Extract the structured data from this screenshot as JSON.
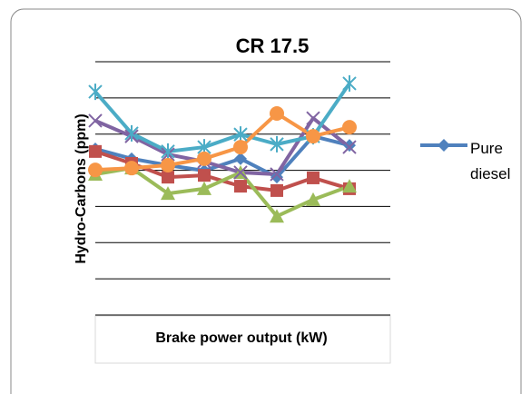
{
  "chart_data": {
    "type": "line",
    "title": "CR 17.5",
    "x_label": "Brake power output (kW)",
    "y_label": "Hydro-Carbons (ppm)",
    "categories": [
      null,
      null,
      null,
      null,
      null,
      null,
      null,
      null
    ],
    "ylim": [
      0,
      7
    ],
    "yticks": [
      0,
      1,
      2,
      3,
      4,
      5,
      6,
      7
    ],
    "grid": true,
    "legend": "right",
    "series": [
      {
        "name": "Pure diesel",
        "color": "#4f81bd",
        "marker": "diamond",
        "values": [
          4.59,
          4.32,
          4.14,
          3.99,
          4.32,
          3.81,
          4.94,
          4.69
        ]
      },
      {
        "color": "#c0504d",
        "marker": "square",
        "values": [
          4.52,
          4.19,
          3.81,
          3.86,
          3.56,
          3.44,
          3.79,
          3.49
        ]
      },
      {
        "color": "#9bbb59",
        "marker": "triangle",
        "values": [
          3.89,
          4.06,
          3.36,
          3.49,
          3.94,
          2.73,
          3.19,
          3.56
        ]
      },
      {
        "color": "#8064a2",
        "marker": "x",
        "values": [
          5.37,
          4.94,
          4.44,
          4.24,
          3.94,
          3.89,
          5.44,
          4.64
        ]
      },
      {
        "color": "#4bacc6",
        "marker": "star",
        "values": [
          6.17,
          5.02,
          4.52,
          4.64,
          4.99,
          4.72,
          4.94,
          6.4
        ]
      },
      {
        "color": "#f79646",
        "marker": "circle",
        "values": [
          4.01,
          4.06,
          4.14,
          4.32,
          4.64,
          5.57,
          4.94,
          5.19
        ]
      }
    ]
  }
}
